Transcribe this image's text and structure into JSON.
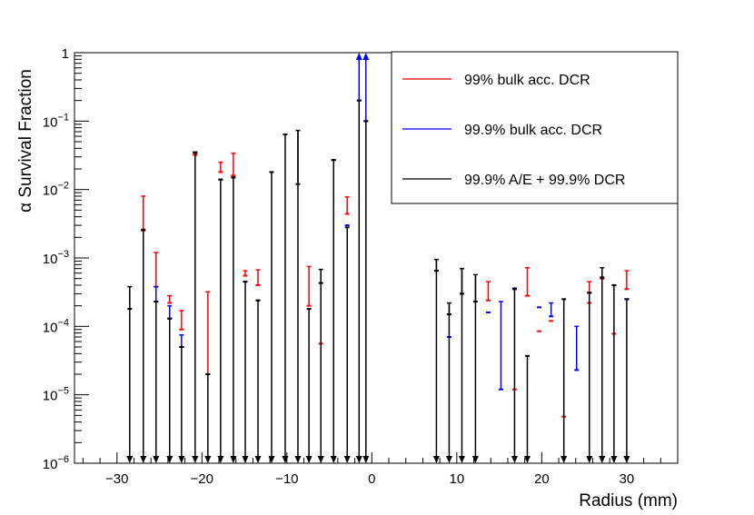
{
  "chart_data": {
    "type": "scatter",
    "x_label": "Radius (mm)",
    "y_label": "α Survival Fraction",
    "x_range": [
      -35,
      36
    ],
    "y_range": [
      1e-06,
      1
    ],
    "y_scale": "log",
    "x_ticks": [
      -30,
      -20,
      -10,
      0,
      10,
      20,
      30
    ],
    "x_tick_labels": [
      "−30",
      "−20",
      "−10",
      "0",
      "10",
      "20",
      "30"
    ],
    "y_ticks": [
      {
        "value": 1,
        "base": "1",
        "exp": ""
      },
      {
        "value": 0.1,
        "base": "10",
        "exp": "−1"
      },
      {
        "value": 0.01,
        "base": "10",
        "exp": "−2"
      },
      {
        "value": 0.001,
        "base": "10",
        "exp": "−3"
      },
      {
        "value": 0.0001,
        "base": "10",
        "exp": "−4"
      },
      {
        "value": 1e-05,
        "base": "10",
        "exp": "−5"
      },
      {
        "value": 1e-06,
        "base": "10",
        "exp": "−6"
      }
    ],
    "legend": {
      "position": "top-right",
      "entries": [
        {
          "label": "99% bulk acc. DCR",
          "color": "#ff0000"
        },
        {
          "label": "99.9% bulk acc. DCR",
          "color": "#0000ff"
        },
        {
          "label": "99.9% A/E + 99.9% DCR",
          "color": "#000000"
        }
      ]
    },
    "series": [
      {
        "name": "99% bulk acc. DCR",
        "color": "#ff0000",
        "points": [
          {
            "x": -26.9,
            "y": 0.0025,
            "hi": 0.008
          },
          {
            "x": -25.4,
            "y": 0.00038,
            "hi": 0.0012
          },
          {
            "x": -23.8,
            "y": 0.00022,
            "hi": 0.00028
          },
          {
            "x": -22.4,
            "y": 9e-05,
            "hi": 0.00017
          },
          {
            "x": -20.8,
            "y": 0.032,
            "hi": 0.033
          },
          {
            "x": -19.3,
            "y": 2e-05,
            "hi": 0.00032
          },
          {
            "x": -17.8,
            "y": 0.018,
            "hi": 0.025
          },
          {
            "x": -16.3,
            "y": 0.016,
            "hi": 0.034
          },
          {
            "x": -14.9,
            "y": 0.00055,
            "hi": 0.00065
          },
          {
            "x": -13.4,
            "y": 0.0004,
            "hi": 0.00067
          },
          {
            "x": -7.4,
            "y": 0.0002,
            "hi": 0.00075
          },
          {
            "x": -6.0,
            "y": 5.6e-05
          },
          {
            "x": -2.9,
            "y": 0.0044,
            "hi": 0.0078
          },
          {
            "x": 7.6,
            "y": 0.00065
          },
          {
            "x": 9.1,
            "y": 0.00015
          },
          {
            "x": 10.6,
            "y": 0.0003
          },
          {
            "x": 13.7,
            "y": 0.00024,
            "hi": 0.00045
          },
          {
            "x": 16.8,
            "y": 1.2e-05
          },
          {
            "x": 18.3,
            "y": 0.00028,
            "hi": 0.00072
          },
          {
            "x": 19.7,
            "y": 8.5e-05
          },
          {
            "x": 21.1,
            "y": 0.00012
          },
          {
            "x": 22.6,
            "y": 4.8e-06
          },
          {
            "x": 25.6,
            "y": 0.00022,
            "hi": 0.00045
          },
          {
            "x": 27.1,
            "y": 0.0005
          },
          {
            "x": 28.5,
            "y": 7.8e-05
          },
          {
            "x": 30.0,
            "y": 0.00035,
            "hi": 0.00065
          }
        ]
      },
      {
        "name": "99.9% bulk acc. DCR",
        "color": "#0000ff",
        "points": [
          {
            "x": -25.4,
            "y": 0.00023,
            "hi": 0.00038
          },
          {
            "x": -23.8,
            "y": 0.00013,
            "hi": 0.0002
          },
          {
            "x": -22.4,
            "y": 5e-05,
            "hi": 7.5e-05
          },
          {
            "x": -20.8,
            "y": 0.035
          },
          {
            "x": -17.8,
            "y": 0.014
          },
          {
            "x": -16.3,
            "y": 0.015
          },
          {
            "x": -14.9,
            "y": 0.00045
          },
          {
            "x": -13.4,
            "y": 0.00024
          },
          {
            "x": -4.5,
            "y": 0.027
          },
          {
            "x": -2.9,
            "y": 0.003
          },
          {
            "x": -1.5,
            "y": 0.2,
            "arrow_up": true
          },
          {
            "x": -0.7,
            "y": 0.1,
            "arrow_up": true
          },
          {
            "x": 9.1,
            "y": 7e-05
          },
          {
            "x": 13.7,
            "y": 0.00016
          },
          {
            "x": 15.2,
            "y": 1.2e-05,
            "hi": 0.00023
          },
          {
            "x": 16.8,
            "y": 0.00036
          },
          {
            "x": 19.7,
            "y": 0.00019
          },
          {
            "x": 21.1,
            "y": 0.00014,
            "hi": 0.00022
          },
          {
            "x": 24.1,
            "y": 2.3e-05,
            "hi": 0.0001
          },
          {
            "x": 25.6,
            "y": 0.00031
          },
          {
            "x": 28.5,
            "y": 0.0004
          },
          {
            "x": 30.0,
            "y": 0.00025
          }
        ]
      },
      {
        "name": "99.9% A/E + 99.9% DCR",
        "color": "#000000",
        "points": [
          {
            "x": -28.5,
            "y": 0.00018,
            "hi": 0.00038
          },
          {
            "x": -26.9,
            "y": 0.0026
          },
          {
            "x": -25.4,
            "y": 0.00023
          },
          {
            "x": -23.8,
            "y": 0.00013
          },
          {
            "x": -22.4,
            "y": 5e-05
          },
          {
            "x": -20.8,
            "y": 0.035
          },
          {
            "x": -19.3,
            "y": 2e-05
          },
          {
            "x": -17.8,
            "y": 0.014
          },
          {
            "x": -16.3,
            "y": 0.015
          },
          {
            "x": -14.9,
            "y": 0.00045
          },
          {
            "x": -13.4,
            "y": 0.00024
          },
          {
            "x": -11.8,
            "y": 0.018
          },
          {
            "x": -10.2,
            "y": 0.064
          },
          {
            "x": -8.7,
            "y": 0.012,
            "hi": 0.073
          },
          {
            "x": -7.4,
            "y": 0.00018
          },
          {
            "x": -6.0,
            "y": 0.00043,
            "hi": 0.00068
          },
          {
            "x": -4.5,
            "y": 0.027
          },
          {
            "x": -2.9,
            "y": 0.0028
          },
          {
            "x": -1.5,
            "y": 0.2
          },
          {
            "x": -0.7,
            "y": 0.1
          },
          {
            "x": 7.6,
            "y": 0.00065,
            "hi": 0.00095
          },
          {
            "x": 9.1,
            "y": 0.00015,
            "hi": 0.00022
          },
          {
            "x": 10.6,
            "y": 0.0003,
            "hi": 0.0007
          },
          {
            "x": 12.2,
            "y": 0.00023,
            "hi": 0.00057
          },
          {
            "x": 16.8,
            "y": 0.00035
          },
          {
            "x": 18.3,
            "y": 3.7e-05
          },
          {
            "x": 22.6,
            "y": 0.00025
          },
          {
            "x": 25.6,
            "y": 0.00031
          },
          {
            "x": 27.1,
            "y": 0.00052,
            "hi": 0.00072
          },
          {
            "x": 28.5,
            "y": 0.0004
          },
          {
            "x": 30.0,
            "y": 0.00025
          }
        ]
      }
    ]
  }
}
